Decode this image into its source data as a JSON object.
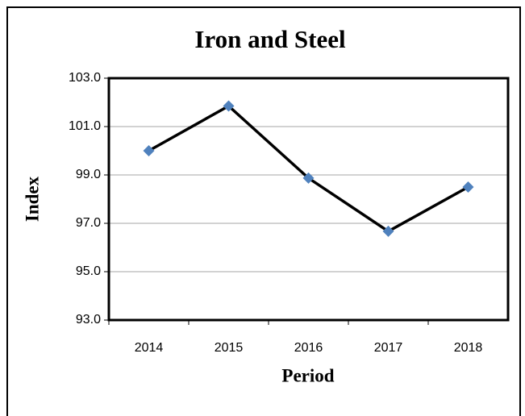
{
  "chart_data": {
    "type": "line",
    "title": "Iron and Steel",
    "x_label": "Period",
    "y_label": "Index",
    "categories": [
      "2014",
      "2015",
      "2016",
      "2017",
      "2018"
    ],
    "series": [
      {
        "name": "Index",
        "color": "#4f81bd",
        "values": [
          100.0,
          101.85,
          98.87,
          96.67,
          98.5
        ]
      }
    ],
    "ylim": [
      93,
      103
    ],
    "yticks": [
      {
        "value": 93,
        "label": "93.0"
      },
      {
        "value": 95,
        "label": "95.0"
      },
      {
        "value": 97,
        "label": "97.0"
      },
      {
        "value": 99,
        "label": "99.0"
      },
      {
        "value": 101,
        "label": "101.0"
      },
      {
        "value": 103,
        "label": "103.0"
      }
    ],
    "grid": true
  }
}
